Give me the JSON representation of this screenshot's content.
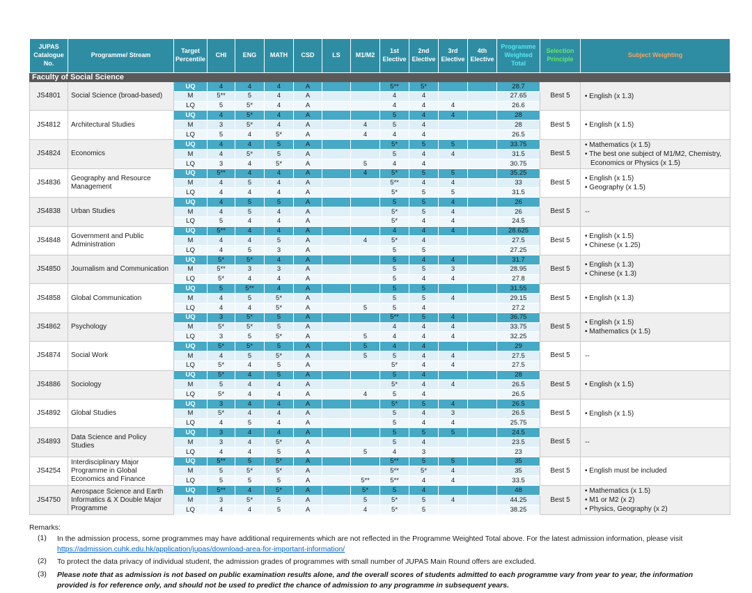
{
  "colors": {
    "header_bg": "#2F8DA3",
    "uq_bg": "#46A9C5",
    "m_bg": "#DFEFF7",
    "lq_bg": "#EFF7FB",
    "section_bg": "#595959",
    "block_gray": "#EFEFEF",
    "pwt_text": "#55E8F2",
    "sp_text": "#62E964",
    "sw_text": "#F3A564",
    "link": "#0563C1"
  },
  "table": {
    "columns": [
      "JUPAS Catalogue No.",
      "Programme/ Stream",
      "Target Percentile",
      "CHI",
      "ENG",
      "MATH",
      "CSD",
      "LS",
      "M1/M2",
      "1st Elective",
      "2nd Elective",
      "3rd Elective",
      "4th Elective",
      "Programme Weighted Total",
      "Selection Principle",
      "Subject Weighting"
    ],
    "column_keys": [
      "jupas-no",
      "programme-stream",
      "target-percentile",
      "chi",
      "eng",
      "math",
      "csd",
      "ls",
      "m1m2",
      "elective-1",
      "elective-2",
      "elective-3",
      "elective-4",
      "programme-weighted-total",
      "selection-principle",
      "subject-weighting"
    ],
    "section": "Faculty of Social Science",
    "row_labels": [
      "UQ",
      "M",
      "LQ"
    ],
    "programmes": [
      {
        "no": "JS4801",
        "name": "Social Science (broad-based)",
        "selection": "Best 5",
        "weighting": [
          "English (x 1.3)"
        ],
        "rows": [
          [
            "UQ",
            "4",
            "4",
            "4",
            "A",
            "",
            "",
            "5**",
            "5*",
            "",
            "",
            "28.7"
          ],
          [
            "M",
            "5**",
            "5",
            "4",
            "A",
            "",
            "",
            "4",
            "4",
            "",
            "",
            "27.65"
          ],
          [
            "LQ",
            "5",
            "5*",
            "4",
            "A",
            "",
            "",
            "4",
            "4",
            "4",
            "",
            "26.6"
          ]
        ]
      },
      {
        "no": "JS4812",
        "name": "Architectural Studies",
        "selection": "Best 5",
        "weighting": [
          "English (x 1.5)"
        ],
        "rows": [
          [
            "UQ",
            "4",
            "5*",
            "4",
            "A",
            "",
            "",
            "5",
            "4",
            "4",
            "",
            "28"
          ],
          [
            "M",
            "3",
            "5*",
            "4",
            "A",
            "",
            "4",
            "5",
            "4",
            "",
            "",
            "28"
          ],
          [
            "LQ",
            "5",
            "4",
            "5*",
            "A",
            "",
            "4",
            "4",
            "4",
            "",
            "",
            "26.5"
          ]
        ]
      },
      {
        "no": "JS4824",
        "name": "Economics",
        "selection": "Best 5",
        "weighting": [
          "Mathematics (x 1.5)",
          "The best one subject of M1/M2, Chemistry, Economics or Physics (x 1.5)"
        ],
        "rows": [
          [
            "UQ",
            "4",
            "4",
            "5",
            "A",
            "",
            "",
            "5*",
            "5",
            "5",
            "",
            "33.75"
          ],
          [
            "M",
            "4",
            "5*",
            "5",
            "A",
            "",
            "",
            "5",
            "4",
            "4",
            "",
            "31.5"
          ],
          [
            "LQ",
            "3",
            "4",
            "5*",
            "A",
            "",
            "5",
            "4",
            "4",
            "",
            "",
            "30.75"
          ]
        ]
      },
      {
        "no": "JS4836",
        "name": "Geography and Resource Management",
        "selection": "Best 5",
        "weighting": [
          "English (x 1.5)",
          "Geography (x 1.5)"
        ],
        "rows": [
          [
            "UQ",
            "5**",
            "4",
            "4",
            "A",
            "",
            "4",
            "5*",
            "5",
            "5",
            "",
            "35.25"
          ],
          [
            "M",
            "4",
            "5",
            "4",
            "A",
            "",
            "",
            "5**",
            "4",
            "4",
            "",
            "33"
          ],
          [
            "LQ",
            "4",
            "4",
            "4",
            "A",
            "",
            "",
            "5*",
            "5",
            "5",
            "",
            "31.5"
          ]
        ]
      },
      {
        "no": "JS4838",
        "name": "Urban Studies",
        "selection": "Best 5",
        "weighting": [
          "--"
        ],
        "rows": [
          [
            "UQ",
            "4",
            "5",
            "5",
            "A",
            "",
            "",
            "5",
            "5",
            "4",
            "",
            "26"
          ],
          [
            "M",
            "4",
            "5",
            "4",
            "A",
            "",
            "",
            "5*",
            "5",
            "4",
            "",
            "26"
          ],
          [
            "LQ",
            "5",
            "4",
            "4",
            "A",
            "",
            "",
            "5*",
            "4",
            "4",
            "",
            "24.5"
          ]
        ]
      },
      {
        "no": "JS4848",
        "name": "Government and Public Administration",
        "selection": "Best 5",
        "weighting": [
          "English (x 1.5)",
          "Chinese (x 1.25)"
        ],
        "rows": [
          [
            "UQ",
            "5**",
            "4",
            "4",
            "A",
            "",
            "",
            "4",
            "4",
            "4",
            "",
            "28.625"
          ],
          [
            "M",
            "4",
            "4",
            "5",
            "A",
            "",
            "4",
            "5*",
            "4",
            "",
            "",
            "27.5"
          ],
          [
            "LQ",
            "4",
            "5",
            "3",
            "A",
            "",
            "",
            "5",
            "5",
            "",
            "",
            "27.25"
          ]
        ]
      },
      {
        "no": "JS4850",
        "name": "Journalism and Communication",
        "selection": "Best 5",
        "weighting": [
          "English (x 1.3)",
          "Chinese (x 1.3)"
        ],
        "rows": [
          [
            "UQ",
            "5*",
            "5*",
            "4",
            "A",
            "",
            "",
            "5",
            "4",
            "4",
            "",
            "31.7"
          ],
          [
            "M",
            "5**",
            "3",
            "3",
            "A",
            "",
            "",
            "5",
            "5",
            "3",
            "",
            "28.95"
          ],
          [
            "LQ",
            "5*",
            "4",
            "4",
            "A",
            "",
            "",
            "5",
            "4",
            "4",
            "",
            "27.8"
          ]
        ]
      },
      {
        "no": "JS4858",
        "name": "Global Communication",
        "selection": "Best 5",
        "weighting": [
          "English (x 1.3)"
        ],
        "rows": [
          [
            "UQ",
            "5",
            "5**",
            "4",
            "A",
            "",
            "",
            "5",
            "5",
            "",
            "",
            "31.55"
          ],
          [
            "M",
            "4",
            "5",
            "5*",
            "A",
            "",
            "",
            "5",
            "5",
            "4",
            "",
            "29.15"
          ],
          [
            "LQ",
            "4",
            "4",
            "5*",
            "A",
            "",
            "5",
            "5",
            "4",
            "",
            "",
            "27.2"
          ]
        ]
      },
      {
        "no": "JS4862",
        "name": "Psychology",
        "selection": "Best 5",
        "weighting": [
          "English (x 1.5)",
          "Mathematics (x 1.5)"
        ],
        "rows": [
          [
            "UQ",
            "3",
            "5*",
            "5",
            "A",
            "",
            "",
            "5**",
            "5",
            "4",
            "",
            "36.75"
          ],
          [
            "M",
            "5*",
            "5*",
            "5",
            "A",
            "",
            "",
            "4",
            "4",
            "4",
            "",
            "33.75"
          ],
          [
            "LQ",
            "3",
            "5",
            "5*",
            "A",
            "",
            "5",
            "4",
            "4",
            "4",
            "",
            "32.25"
          ]
        ]
      },
      {
        "no": "JS4874",
        "name": "Social Work",
        "selection": "Best 5",
        "weighting": [
          "--"
        ],
        "rows": [
          [
            "UQ",
            "5*",
            "5*",
            "5",
            "A",
            "",
            "5",
            "4",
            "4",
            "",
            "",
            "29"
          ],
          [
            "M",
            "4",
            "5",
            "5*",
            "A",
            "",
            "5",
            "5",
            "4",
            "4",
            "",
            "27.5"
          ],
          [
            "LQ",
            "5*",
            "4",
            "5",
            "A",
            "",
            "",
            "5*",
            "4",
            "4",
            "",
            "27.5"
          ]
        ]
      },
      {
        "no": "JS4886",
        "name": "Sociology",
        "selection": "Best 5",
        "weighting": [
          "English (x 1.5)"
        ],
        "rows": [
          [
            "UQ",
            "5*",
            "4",
            "5",
            "A",
            "",
            "",
            "5",
            "4",
            "",
            "",
            "28"
          ],
          [
            "M",
            "5",
            "4",
            "4",
            "A",
            "",
            "",
            "5*",
            "4",
            "4",
            "",
            "26.5"
          ],
          [
            "LQ",
            "5*",
            "4",
            "4",
            "A",
            "",
            "4",
            "5",
            "4",
            "",
            "",
            "26.5"
          ]
        ]
      },
      {
        "no": "JS4892",
        "name": "Global Studies",
        "selection": "Best 5",
        "weighting": [
          "English (x 1.5)"
        ],
        "rows": [
          [
            "UQ",
            "3",
            "4",
            "4",
            "A",
            "",
            "",
            "5*",
            "5",
            "4",
            "",
            "26.5"
          ],
          [
            "M",
            "5*",
            "4",
            "4",
            "A",
            "",
            "",
            "5",
            "4",
            "3",
            "",
            "26.5"
          ],
          [
            "LQ",
            "4",
            "5",
            "4",
            "A",
            "",
            "",
            "5",
            "4",
            "4",
            "",
            "25.75"
          ]
        ]
      },
      {
        "no": "JS4893",
        "name": "Data Science and Policy Studies",
        "selection": "Best 5",
        "weighting": [
          "--"
        ],
        "rows": [
          [
            "UQ",
            "3",
            "4",
            "4",
            "A",
            "",
            "",
            "5",
            "5",
            "5",
            "",
            "24.5"
          ],
          [
            "M",
            "3",
            "4",
            "5*",
            "A",
            "",
            "",
            "5",
            "4",
            "",
            "",
            "23.5"
          ],
          [
            "LQ",
            "4",
            "4",
            "5",
            "A",
            "",
            "5",
            "4",
            "3",
            "",
            "",
            "23"
          ]
        ]
      },
      {
        "no": "JS4254",
        "name": "Interdisciplinary Major Programme in Global Economics and Finance",
        "selection": "Best 5",
        "weighting": [
          "English must be included"
        ],
        "rows": [
          [
            "UQ",
            "5**",
            "5",
            "5*",
            "A",
            "",
            "",
            "5**",
            "5",
            "5",
            "",
            "35"
          ],
          [
            "M",
            "5",
            "5*",
            "5*",
            "A",
            "",
            "",
            "5**",
            "5*",
            "4",
            "",
            "35"
          ],
          [
            "LQ",
            "5",
            "5",
            "5",
            "A",
            "",
            "5**",
            "5**",
            "4",
            "4",
            "",
            "33.5"
          ]
        ]
      },
      {
        "no": "JS4750",
        "name": "Aerospace Science and Earth Informatics & X Double Major Programme",
        "selection": "Best 5",
        "weighting": [
          "Mathematics (x 1.5)",
          "M1 or M2 (x 2)",
          "Physics, Geography (x 2)"
        ],
        "rows": [
          [
            "UQ",
            "5**",
            "4",
            "5*",
            "A",
            "",
            "5*",
            "5",
            "4",
            "",
            "",
            "48"
          ],
          [
            "M",
            "3",
            "5*",
            "5",
            "A",
            "",
            "5",
            "5*",
            "5",
            "4",
            "",
            "44.25"
          ],
          [
            "LQ",
            "4",
            "4",
            "5",
            "A",
            "",
            "4",
            "5*",
            "5",
            "",
            "",
            "38.25"
          ]
        ]
      }
    ]
  },
  "remarks": {
    "title": "Remarks:",
    "items": [
      {
        "num": "(1)",
        "text": "In the admission process, some programmes may have additional requirements which are not reflected in the Programme Weighted Total above. For the latest admission information, please visit",
        "link": "https://admission.cuhk.edu.hk/application/jupas/download-area-for-important-information/",
        "emphasis": false
      },
      {
        "num": "(2)",
        "text": "To protect the data privacy of individual student, the admission grades of programmes with small number of JUPAS Main Round offers are excluded.",
        "emphasis": false
      },
      {
        "num": "(3)",
        "text": "Please note that as admission is not based on public examination results alone, and the overall scores of students admitted to each programme vary from year to year, the information provided is for reference only,  and should not be used to predict the chance of admission to any programme in subsequent years.",
        "emphasis": true
      }
    ]
  }
}
